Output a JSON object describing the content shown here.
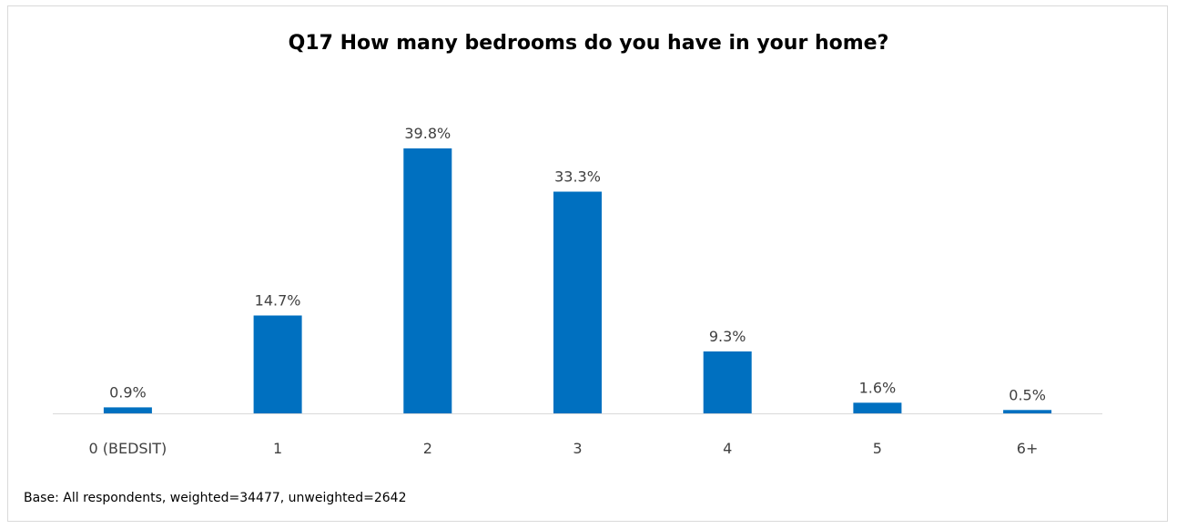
{
  "chart_data": {
    "type": "bar",
    "title": "Q17 How many bedrooms do you have in your home?",
    "categories": [
      "0 (BEDSIT)",
      "1",
      "2",
      "3",
      "4",
      "5",
      "6+"
    ],
    "values": [
      0.9,
      14.7,
      39.8,
      33.3,
      9.3,
      1.6,
      0.5
    ],
    "data_labels": [
      "0.9%",
      "14.7%",
      "39.8%",
      "33.3%",
      "9.3%",
      "1.6%",
      "0.5%"
    ],
    "xlabel": "",
    "ylabel": "",
    "ylim": [
      0,
      42
    ],
    "grid": false,
    "legend": "none",
    "bar_color": "#0070C0",
    "axis_color": "#d9d9d9"
  },
  "footnote": "Base: All respondents, weighted=34477, unweighted=2642"
}
